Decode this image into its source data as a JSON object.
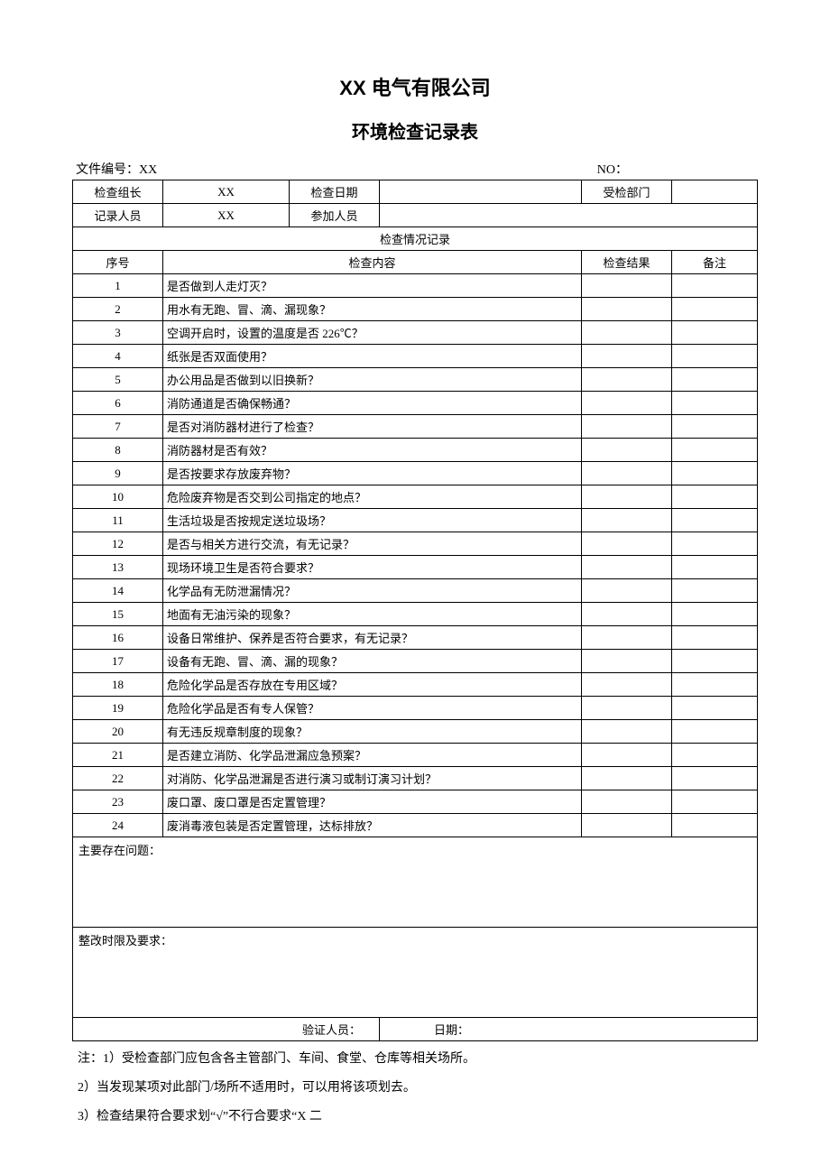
{
  "header": {
    "company": "XX 电气有限公司",
    "title": "环境检查记录表",
    "doc_no_label": "文件编号：XX",
    "no_label": "NO："
  },
  "info": {
    "leader_label": "检查组长",
    "leader_value": "XX",
    "date_label": "检查日期",
    "date_value": "",
    "dept_label": "受检部门",
    "dept_value": "",
    "recorder_label": "记录人员",
    "recorder_value": "XX",
    "attendee_label": "参加人员",
    "attendee_value": ""
  },
  "section_title": "检查情况记录",
  "columns": {
    "seq": "序号",
    "content": "检查内容",
    "result": "检查结果",
    "note": "备注"
  },
  "rows": [
    {
      "seq": "1",
      "content": "是否做到人走灯灭？"
    },
    {
      "seq": "2",
      "content": "用水有无跑、冒、滴、漏现象？"
    },
    {
      "seq": "3",
      "content": "空调开启时，设置的温度是否 226℃？"
    },
    {
      "seq": "4",
      "content": "纸张是否双面使用？"
    },
    {
      "seq": "5",
      "content": "办公用品是否做到以旧换新？"
    },
    {
      "seq": "6",
      "content": "消防通道是否确保畅通？"
    },
    {
      "seq": "7",
      "content": "是否对消防器材进行了检查？"
    },
    {
      "seq": "8",
      "content": "消防器材是否有效？"
    },
    {
      "seq": "9",
      "content": "是否按要求存放废弃物？"
    },
    {
      "seq": "10",
      "content": "危险废弃物是否交到公司指定的地点？"
    },
    {
      "seq": "11",
      "content": "生活垃圾是否按规定送垃圾场？"
    },
    {
      "seq": "12",
      "content": "是否与相关方进行交流，有无记录？"
    },
    {
      "seq": "13",
      "content": "现场环境卫生是否符合要求？"
    },
    {
      "seq": "14",
      "content": "化学品有无防泄漏情况？"
    },
    {
      "seq": "15",
      "content": "地面有无油污染的现象？"
    },
    {
      "seq": "16",
      "content": "设备日常维护、保养是否符合要求，有无记录？"
    },
    {
      "seq": "17",
      "content": "设备有无跑、冒、滴、漏的现象？"
    },
    {
      "seq": "18",
      "content": "危险化学品是否存放在专用区域？"
    },
    {
      "seq": "19",
      "content": "危险化学品是否有专人保管？"
    },
    {
      "seq": "20",
      "content": "有无违反规章制度的现象？"
    },
    {
      "seq": "21",
      "content": "是否建立消防、化学品泄漏应急预案？"
    },
    {
      "seq": "22",
      "content": "对消防、化学品泄漏是否进行演习或制订演习计划？"
    },
    {
      "seq": "23",
      "content": "废口罩、废口罩是否定置管理？"
    },
    {
      "seq": "24",
      "content": "废消毒液包装是否定置管理，达标排放？"
    }
  ],
  "issues_label": "主要存在问题：",
  "deadline_label": "整改时限及要求：",
  "verify": {
    "person_label": "验证人员：",
    "date_label": "日期："
  },
  "notes": {
    "n1": "注：1）受检查部门应包含各主管部门、车间、食堂、仓库等相关场所。",
    "n2": "2）当发现某项对此部门/场所不适用时，可以用将该项划去。",
    "n3": "3）检查结果符合要求划“√”不行合要求“X 二"
  },
  "style": {
    "background_color": "#ffffff",
    "text_color": "#000000",
    "border_color": "#000000",
    "title_fontsize": 22,
    "subtitle_fontsize": 20,
    "body_fontsize": 14,
    "table_fontsize": 13
  }
}
